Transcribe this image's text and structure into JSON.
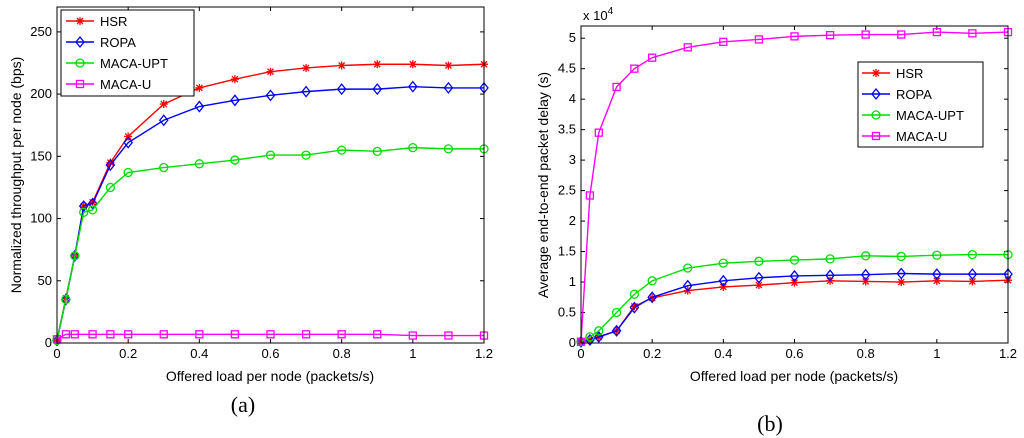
{
  "chart_data": [
    {
      "type": "line",
      "caption": "(a)",
      "xlabel": "Offered load per node (packets/s)",
      "ylabel": "Normalized throughput per node (bps)",
      "xlim": [
        0,
        1.2
      ],
      "ylim": [
        0,
        270
      ],
      "xticks": [
        0,
        0.2,
        0.4,
        0.6,
        0.8,
        1,
        1.2
      ],
      "xtick_labels": [
        "0",
        "0.2",
        "0.4",
        "0.6",
        "0.8",
        "1",
        "1.2"
      ],
      "yticks": [
        0,
        50,
        100,
        150,
        200,
        250
      ],
      "ytick_labels": [
        "0",
        "50",
        "100",
        "150",
        "200",
        "250"
      ],
      "legend_position": "top-left",
      "series": [
        {
          "name": "HSR",
          "color": "#ff0000",
          "marker": "asterisk",
          "x": [
            0,
            0.025,
            0.05,
            0.075,
            0.1,
            0.15,
            0.2,
            0.3,
            0.4,
            0.5,
            0.6,
            0.7,
            0.8,
            0.9,
            1.0,
            1.1,
            1.2
          ],
          "y": [
            2,
            36,
            70,
            110,
            113,
            145,
            166,
            192,
            205,
            212,
            218,
            221,
            223,
            224,
            224,
            223,
            224
          ]
        },
        {
          "name": "ROPA",
          "color": "#0000ff",
          "marker": "diamond",
          "x": [
            0,
            0.025,
            0.05,
            0.075,
            0.1,
            0.15,
            0.2,
            0.3,
            0.4,
            0.5,
            0.6,
            0.7,
            0.8,
            0.9,
            1.0,
            1.1,
            1.2
          ],
          "y": [
            2,
            35,
            70,
            110,
            112,
            143,
            161,
            179,
            190,
            195,
            199,
            202,
            204,
            204,
            206,
            205,
            205
          ]
        },
        {
          "name": "MACA-UPT",
          "color": "#00dd00",
          "marker": "circle",
          "x": [
            0,
            0.025,
            0.05,
            0.075,
            0.1,
            0.15,
            0.2,
            0.3,
            0.4,
            0.5,
            0.6,
            0.7,
            0.8,
            0.9,
            1.0,
            1.1,
            1.2
          ],
          "y": [
            2,
            35,
            70,
            105,
            107,
            125,
            137,
            141,
            144,
            147,
            151,
            151,
            155,
            154,
            157,
            156,
            156
          ]
        },
        {
          "name": "MACA-U",
          "color": "#ff00ff",
          "marker": "square",
          "x": [
            0,
            0.025,
            0.05,
            0.1,
            0.15,
            0.2,
            0.3,
            0.4,
            0.5,
            0.6,
            0.7,
            0.8,
            0.9,
            1.0,
            1.1,
            1.2
          ],
          "y": [
            3,
            7,
            7,
            7,
            7,
            7,
            7,
            7,
            7,
            7,
            7,
            7,
            7,
            6,
            6,
            6
          ]
        }
      ]
    },
    {
      "type": "line",
      "caption": "(b)",
      "xlabel": "Offered load per node (packets/s)",
      "ylabel": "Average end-to-end packet delay (s)",
      "y_multiplier": "x 10",
      "y_multiplier_exp": "4",
      "xlim": [
        0,
        1.2
      ],
      "ylim": [
        0,
        5.2
      ],
      "xticks": [
        0,
        0.2,
        0.4,
        0.6,
        0.8,
        1,
        1.2
      ],
      "xtick_labels": [
        "0",
        "0.2",
        "0.4",
        "0.6",
        "0.8",
        "1",
        "1.2"
      ],
      "yticks": [
        0,
        0.5,
        1,
        1.5,
        2,
        2.5,
        3,
        3.5,
        4,
        4.5,
        5
      ],
      "ytick_labels": [
        "0",
        "0.5",
        "1",
        "1.5",
        "2",
        "2.5",
        "3",
        "3.5",
        "4",
        "4.5",
        "5"
      ],
      "legend_position": "right",
      "series": [
        {
          "name": "HSR",
          "color": "#ff0000",
          "marker": "asterisk",
          "x": [
            0,
            0.025,
            0.05,
            0.1,
            0.15,
            0.2,
            0.3,
            0.4,
            0.5,
            0.6,
            0.7,
            0.8,
            0.9,
            1.0,
            1.1,
            1.2
          ],
          "y": [
            0.02,
            0.05,
            0.1,
            0.2,
            0.6,
            0.74,
            0.86,
            0.92,
            0.95,
            0.99,
            1.02,
            1.01,
            1.0,
            1.02,
            1.01,
            1.03
          ]
        },
        {
          "name": "ROPA",
          "color": "#0000ff",
          "marker": "diamond",
          "x": [
            0,
            0.025,
            0.05,
            0.1,
            0.15,
            0.2,
            0.3,
            0.4,
            0.5,
            0.6,
            0.7,
            0.8,
            0.9,
            1.0,
            1.1,
            1.2
          ],
          "y": [
            0.02,
            0.05,
            0.1,
            0.2,
            0.58,
            0.75,
            0.94,
            1.02,
            1.07,
            1.1,
            1.11,
            1.12,
            1.14,
            1.13,
            1.13,
            1.13
          ]
        },
        {
          "name": "MACA-UPT",
          "color": "#00dd00",
          "marker": "circle",
          "x": [
            0,
            0.025,
            0.05,
            0.1,
            0.15,
            0.2,
            0.3,
            0.4,
            0.5,
            0.6,
            0.7,
            0.8,
            0.9,
            1.0,
            1.1,
            1.2
          ],
          "y": [
            0.02,
            0.1,
            0.2,
            0.5,
            0.8,
            1.02,
            1.23,
            1.31,
            1.34,
            1.36,
            1.38,
            1.43,
            1.42,
            1.44,
            1.45,
            1.45
          ]
        },
        {
          "name": "MACA-U",
          "color": "#ff00ff",
          "marker": "square",
          "x": [
            0,
            0.025,
            0.05,
            0.1,
            0.15,
            0.2,
            0.3,
            0.4,
            0.5,
            0.6,
            0.7,
            0.8,
            0.9,
            1.0,
            1.1,
            1.2
          ],
          "y": [
            0.02,
            2.42,
            3.45,
            4.2,
            4.5,
            4.68,
            4.85,
            4.94,
            4.98,
            5.03,
            5.05,
            5.06,
            5.06,
            5.1,
            5.08,
            5.1
          ]
        }
      ]
    }
  ]
}
